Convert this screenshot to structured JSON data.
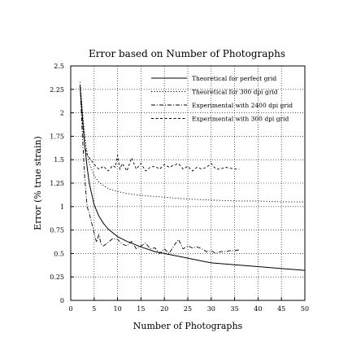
{
  "chart_data": {
    "type": "line",
    "title": "Error based on Number of Photographs",
    "xlabel": "Number of Photographs",
    "ylabel": "Error (% true strain)",
    "xlim": [
      0,
      50
    ],
    "ylim": [
      0,
      2.5
    ],
    "xticks": [
      0,
      5,
      10,
      15,
      20,
      25,
      30,
      35,
      40,
      45,
      50
    ],
    "yticks": [
      0,
      0.25,
      0.5,
      0.75,
      1,
      1.25,
      1.5,
      1.75,
      2,
      2.25,
      2.5
    ],
    "xtick_labels": [
      "0",
      "5",
      "10",
      "15",
      "20",
      "25",
      "30",
      "35",
      "40",
      "45",
      "50"
    ],
    "ytick_labels": [
      "0",
      "0.25",
      "0.5",
      "0.75",
      "1",
      "1.25",
      "1.5",
      "1.75",
      "2",
      "2.25",
      "2.5"
    ],
    "grid": true,
    "legend_position": "top-right",
    "series": [
      {
        "name": "Theoretical for perfect grid",
        "style": "solid",
        "x": [
          2,
          2.5,
          3,
          3.5,
          4,
          5,
          6,
          7,
          8,
          10,
          12,
          15,
          18,
          20,
          25,
          30,
          35,
          40,
          45,
          50
        ],
        "y": [
          2.28,
          1.96,
          1.65,
          1.42,
          1.24,
          1.02,
          0.9,
          0.82,
          0.76,
          0.68,
          0.63,
          0.57,
          0.52,
          0.5,
          0.45,
          0.4,
          0.38,
          0.36,
          0.34,
          0.32
        ]
      },
      {
        "name": "Theoretical for 300 dpi grid",
        "style": "dotted",
        "x": [
          2,
          2.5,
          3,
          3.5,
          4,
          5,
          6,
          8,
          10,
          12,
          15,
          20,
          25,
          30,
          35,
          40,
          45,
          50
        ],
        "y": [
          2.33,
          2.02,
          1.75,
          1.58,
          1.46,
          1.33,
          1.26,
          1.19,
          1.16,
          1.14,
          1.12,
          1.1,
          1.08,
          1.07,
          1.06,
          1.06,
          1.05,
          1.05
        ]
      },
      {
        "name": "Experimental with 2400 dpi grid",
        "style": "dashdot",
        "x": [
          2,
          2.5,
          3,
          3.5,
          4,
          5,
          5.5,
          6,
          6.5,
          7,
          8,
          9,
          10,
          11,
          12,
          13,
          14,
          15,
          16,
          17,
          18,
          19,
          20,
          21,
          22,
          23,
          24,
          25,
          26,
          27,
          28,
          29,
          30,
          31,
          32,
          33,
          34,
          35,
          36
        ],
        "y": [
          2.3,
          1.75,
          1.3,
          1.0,
          0.92,
          0.72,
          0.62,
          0.7,
          0.6,
          0.58,
          0.62,
          0.66,
          0.65,
          0.6,
          0.58,
          0.63,
          0.55,
          0.58,
          0.61,
          0.55,
          0.56,
          0.5,
          0.55,
          0.5,
          0.58,
          0.65,
          0.55,
          0.58,
          0.56,
          0.57,
          0.55,
          0.52,
          0.53,
          0.5,
          0.52,
          0.52,
          0.53,
          0.53,
          0.54
        ]
      },
      {
        "name": "Experimental with 300 dpi grid",
        "style": "dashed",
        "x": [
          2,
          2.5,
          3,
          3.5,
          4,
          5,
          6,
          7,
          8,
          9,
          9.5,
          10,
          10.5,
          11,
          12,
          13,
          14,
          15,
          16,
          17,
          18,
          19,
          20,
          21,
          22,
          23,
          24,
          25,
          26,
          27,
          28,
          29,
          30,
          31,
          32,
          33,
          34,
          35,
          36
        ],
        "y": [
          2.28,
          1.9,
          1.65,
          1.55,
          1.52,
          1.45,
          1.4,
          1.43,
          1.38,
          1.44,
          1.42,
          1.55,
          1.4,
          1.46,
          1.38,
          1.52,
          1.4,
          1.46,
          1.38,
          1.42,
          1.43,
          1.4,
          1.45,
          1.42,
          1.44,
          1.46,
          1.4,
          1.43,
          1.38,
          1.42,
          1.4,
          1.42,
          1.46,
          1.4,
          1.4,
          1.42,
          1.41,
          1.4,
          1.4
        ]
      }
    ]
  }
}
